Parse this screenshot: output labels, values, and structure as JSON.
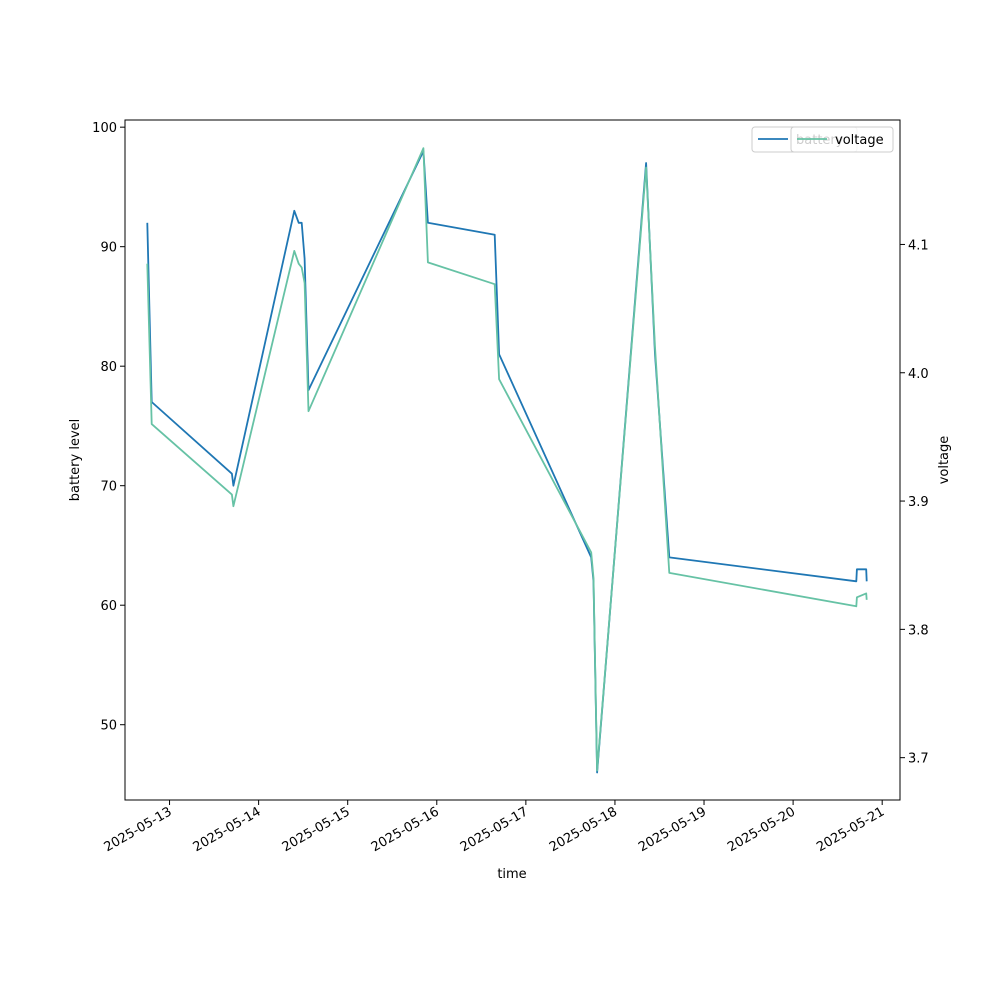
{
  "chart_data": {
    "type": "line",
    "xlabel": "time",
    "ylabel_left": "battery level",
    "ylabel_right": "voltage",
    "x_ticks": [
      "2025-05-13",
      "2025-05-14",
      "2025-05-15",
      "2025-05-16",
      "2025-05-17",
      "2025-05-18",
      "2025-05-19",
      "2025-05-20",
      "2025-05-21"
    ],
    "left_ticks": [
      50,
      60,
      70,
      80,
      90,
      100
    ],
    "right_ticks": [
      "3.7",
      "3.8",
      "3.9",
      "4.0",
      "4.1"
    ],
    "xlim": [
      "2025-05-12 12:00",
      "2025-05-21 04:48"
    ],
    "ylim_left": [
      43.7,
      100.6
    ],
    "ylim_right": [
      3.667,
      4.197
    ],
    "grid": false,
    "legend_left_position": "upper-right",
    "legend_right_position": "upper-right",
    "series": [
      {
        "name": "battery",
        "axis": "left",
        "color": "#1f77b4",
        "points": [
          [
            "2025-05-12 18:00",
            92
          ],
          [
            "2025-05-12 19:12",
            77
          ],
          [
            "2025-05-13 16:48",
            71
          ],
          [
            "2025-05-13 17:12",
            70
          ],
          [
            "2025-05-14 09:36",
            93
          ],
          [
            "2025-05-14 10:48",
            92
          ],
          [
            "2025-05-14 11:36",
            92
          ],
          [
            "2025-05-14 12:24",
            89
          ],
          [
            "2025-05-14 13:26",
            78
          ],
          [
            "2025-05-15 20:24",
            98
          ],
          [
            "2025-05-15 21:36",
            92
          ],
          [
            "2025-05-16 15:36",
            91
          ],
          [
            "2025-05-16 16:48",
            81
          ],
          [
            "2025-05-17 17:36",
            64
          ],
          [
            "2025-05-17 18:14",
            62
          ],
          [
            "2025-05-17 19:12",
            46
          ],
          [
            "2025-05-18 08:24",
            97
          ],
          [
            "2025-05-18 10:48",
            81
          ],
          [
            "2025-05-18 14:38",
            64
          ],
          [
            "2025-05-20 17:02",
            62
          ],
          [
            "2025-05-20 17:12",
            63
          ],
          [
            "2025-05-20 19:41",
            63
          ],
          [
            "2025-05-20 19:50",
            62
          ]
        ]
      },
      {
        "name": "voltage",
        "axis": "right",
        "color": "#66c2a5",
        "points": [
          [
            "2025-05-12 18:00",
            4.085
          ],
          [
            "2025-05-12 19:12",
            3.96
          ],
          [
            "2025-05-13 16:48",
            3.905
          ],
          [
            "2025-05-13 17:12",
            3.896
          ],
          [
            "2025-05-14 09:36",
            4.095
          ],
          [
            "2025-05-14 10:48",
            4.085
          ],
          [
            "2025-05-14 11:36",
            4.082
          ],
          [
            "2025-05-14 12:24",
            4.07
          ],
          [
            "2025-05-14 13:26",
            3.97
          ],
          [
            "2025-05-15 20:24",
            4.175
          ],
          [
            "2025-05-15 21:36",
            4.086
          ],
          [
            "2025-05-16 15:36",
            4.069
          ],
          [
            "2025-05-16 16:48",
            3.995
          ],
          [
            "2025-05-17 17:36",
            3.86
          ],
          [
            "2025-05-17 18:14",
            3.84
          ],
          [
            "2025-05-17 19:12",
            3.69
          ],
          [
            "2025-05-18 08:24",
            4.16
          ],
          [
            "2025-05-18 10:48",
            4.02
          ],
          [
            "2025-05-18 14:38",
            3.844
          ],
          [
            "2025-05-20 17:02",
            3.818
          ],
          [
            "2025-05-20 17:12",
            3.825
          ],
          [
            "2025-05-20 19:41",
            3.828
          ],
          [
            "2025-05-20 19:50",
            3.823
          ]
        ]
      }
    ]
  }
}
